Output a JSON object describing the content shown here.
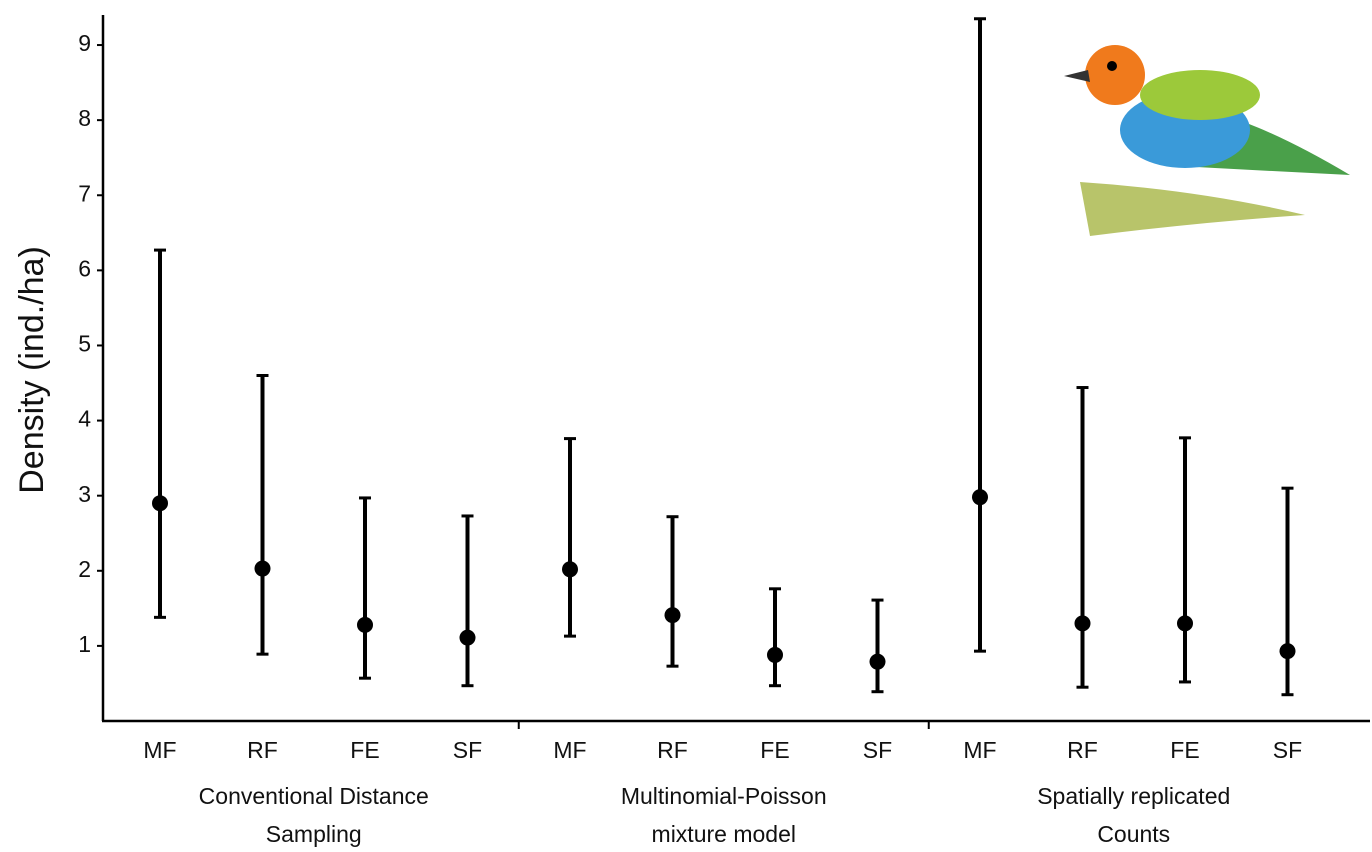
{
  "chart_data": {
    "type": "errorbar",
    "y_label": "Density (ind./ha)",
    "ylim": [
      0,
      9.4
    ],
    "yticks": [
      1,
      2,
      3,
      4,
      5,
      6,
      7,
      8,
      9
    ],
    "color": "#000000",
    "groups": [
      {
        "label": [
          "Conventional Distance",
          "Sampling"
        ],
        "categories": [
          "MF",
          "RF",
          "FE",
          "SF"
        ],
        "values": [
          2.9,
          2.03,
          1.28,
          1.11
        ],
        "lower": [
          1.38,
          0.89,
          0.57,
          0.47
        ],
        "upper": [
          6.27,
          4.6,
          2.97,
          2.73
        ]
      },
      {
        "label": [
          "Multinomial-Poisson",
          "mixture model"
        ],
        "categories": [
          "MF",
          "RF",
          "FE",
          "SF"
        ],
        "values": [
          2.02,
          1.41,
          0.88,
          0.79
        ],
        "lower": [
          1.13,
          0.73,
          0.47,
          0.39
        ],
        "upper": [
          3.76,
          2.72,
          1.76,
          1.61
        ]
      },
      {
        "label": [
          "Spatially replicated",
          "Counts"
        ],
        "categories": [
          "MF",
          "RF",
          "FE",
          "SF"
        ],
        "values": [
          2.98,
          1.3,
          1.3,
          0.93
        ],
        "lower": [
          0.93,
          0.45,
          0.52,
          0.35
        ],
        "upper": [
          9.35,
          4.44,
          3.77,
          3.1
        ]
      }
    ]
  }
}
